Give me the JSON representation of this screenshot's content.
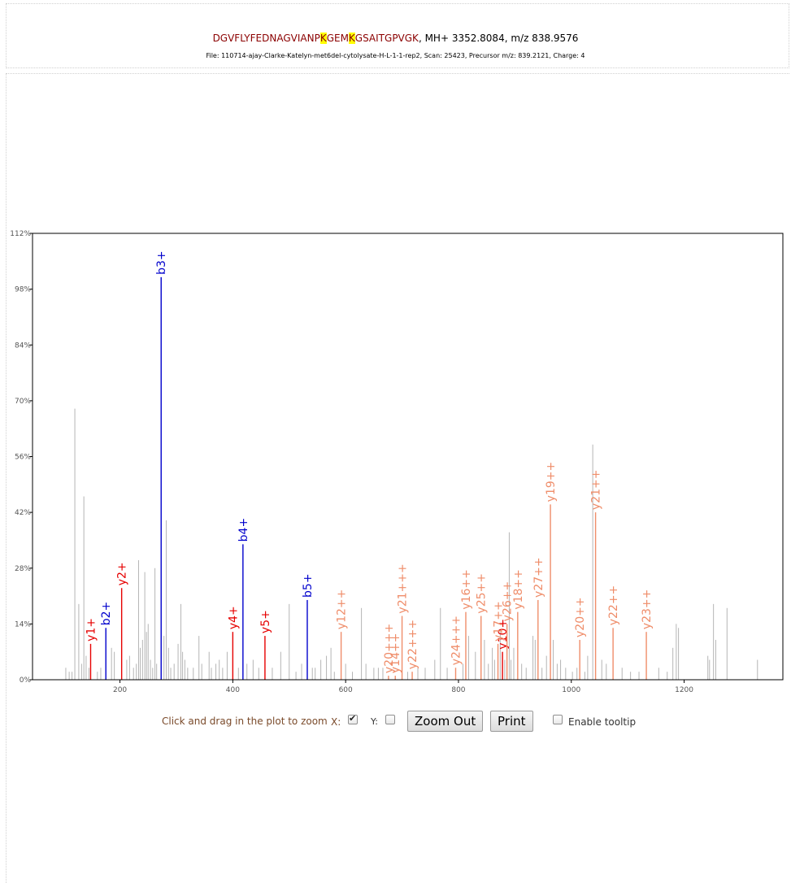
{
  "header": {
    "seq_part1": "DGVFLYFEDNAGVIANP",
    "mod1": "K",
    "seq_part2": "GEM",
    "mod2": "K",
    "seq_part3": "GSAITGPVGK",
    "mass_text": ", MH+ 3352.8084, m/z 838.9576",
    "file_line": "File: 110714-ajay-Clarke-Katelyn-met6del-cytolysate-H-L-1-1-rep2, Scan: 25423, Precursor m/z: 839.2121, Charge: 4"
  },
  "controls": {
    "zoom_label": "Click and drag in the plot to zoom",
    "x_label": "X:",
    "x_checked": true,
    "y_label": "Y:",
    "y_checked": false,
    "zoom_out_label": "Zoom Out",
    "print_label": "Print",
    "tooltip_label": "Enable tooltip",
    "tooltip_checked": false
  },
  "chart_data": {
    "type": "bar",
    "xlim": [
      45,
      1375
    ],
    "ylim": [
      0,
      112
    ],
    "x_ticks": [
      200,
      400,
      600,
      800,
      1000,
      1200
    ],
    "y_ticks": [
      0,
      14,
      28,
      42,
      56,
      70,
      84,
      98,
      112
    ],
    "y_tick_labels": [
      "0%",
      "14%",
      "28%",
      "42%",
      "56%",
      "70%",
      "84%",
      "98%",
      "112%"
    ],
    "colors": {
      "b_ion": "#0000cc",
      "y_ion": "#e60000",
      "y_multi": "#ef8d6a",
      "unmatched": "#b5b5b5",
      "axis": "#000000"
    },
    "labeled_peaks": [
      {
        "label": "b2+",
        "mz": 175,
        "intensity": 13,
        "kind": "b_ion"
      },
      {
        "label": "b3+",
        "mz": 273,
        "intensity": 101,
        "kind": "b_ion"
      },
      {
        "label": "b4+",
        "mz": 418,
        "intensity": 34,
        "kind": "b_ion"
      },
      {
        "label": "b5+",
        "mz": 532,
        "intensity": 20,
        "kind": "b_ion"
      },
      {
        "label": "y1+",
        "mz": 148,
        "intensity": 9,
        "kind": "y_ion"
      },
      {
        "label": "y2+",
        "mz": 203,
        "intensity": 23,
        "kind": "y_ion"
      },
      {
        "label": "y4+",
        "mz": 400,
        "intensity": 12,
        "kind": "y_ion"
      },
      {
        "label": "y5+",
        "mz": 457,
        "intensity": 11,
        "kind": "y_ion"
      },
      {
        "label": "y10+",
        "mz": 878,
        "intensity": 7,
        "kind": "y_ion"
      },
      {
        "label": "y12++",
        "mz": 592,
        "intensity": 12,
        "kind": "y_multi"
      },
      {
        "label": "y20+++",
        "mz": 676,
        "intensity": 1,
        "kind": "y_multi"
      },
      {
        "label": "y14++",
        "mz": 688,
        "intensity": 1,
        "kind": "y_multi"
      },
      {
        "label": "y21+++",
        "mz": 700,
        "intensity": 16,
        "kind": "y_multi"
      },
      {
        "label": "y22+++",
        "mz": 718,
        "intensity": 2,
        "kind": "y_multi"
      },
      {
        "label": "y24+++",
        "mz": 795,
        "intensity": 3,
        "kind": "y_multi"
      },
      {
        "label": "y16++",
        "mz": 813,
        "intensity": 17,
        "kind": "y_multi"
      },
      {
        "label": "y25++",
        "mz": 840,
        "intensity": 16,
        "kind": "y_multi"
      },
      {
        "label": "y17++",
        "mz": 870,
        "intensity": 9,
        "kind": "y_multi"
      },
      {
        "label": "y26++",
        "mz": 886,
        "intensity": 14,
        "kind": "y_multi"
      },
      {
        "label": "y18++",
        "mz": 905,
        "intensity": 17,
        "kind": "y_multi"
      },
      {
        "label": "y27++",
        "mz": 941,
        "intensity": 20,
        "kind": "y_multi"
      },
      {
        "label": "y19++",
        "mz": 963,
        "intensity": 44,
        "kind": "y_multi"
      },
      {
        "label": "y20++",
        "mz": 1015,
        "intensity": 10,
        "kind": "y_multi"
      },
      {
        "label": "y21++",
        "mz": 1043,
        "intensity": 42,
        "kind": "y_multi"
      },
      {
        "label": "y22++",
        "mz": 1074,
        "intensity": 13,
        "kind": "y_multi"
      },
      {
        "label": "y23++",
        "mz": 1133,
        "intensity": 12,
        "kind": "y_multi"
      }
    ],
    "unlabeled_peaks": [
      [
        104,
        3
      ],
      [
        110,
        2
      ],
      [
        115,
        2
      ],
      [
        120,
        68
      ],
      [
        127,
        19
      ],
      [
        132,
        4
      ],
      [
        136,
        46
      ],
      [
        140,
        6
      ],
      [
        145,
        3
      ],
      [
        160,
        2
      ],
      [
        166,
        3
      ],
      [
        185,
        8
      ],
      [
        190,
        7
      ],
      [
        212,
        5
      ],
      [
        217,
        6
      ],
      [
        224,
        3
      ],
      [
        229,
        4
      ],
      [
        233,
        30
      ],
      [
        236,
        8
      ],
      [
        240,
        10
      ],
      [
        244,
        27
      ],
      [
        247,
        12
      ],
      [
        250,
        14
      ],
      [
        254,
        5
      ],
      [
        258,
        3
      ],
      [
        262,
        28
      ],
      [
        265,
        4
      ],
      [
        278,
        11
      ],
      [
        282,
        40
      ],
      [
        286,
        8
      ],
      [
        290,
        3
      ],
      [
        296,
        4
      ],
      [
        303,
        9
      ],
      [
        308,
        19
      ],
      [
        311,
        7
      ],
      [
        315,
        5
      ],
      [
        320,
        3
      ],
      [
        330,
        3
      ],
      [
        340,
        11
      ],
      [
        345,
        4
      ],
      [
        358,
        7
      ],
      [
        362,
        3
      ],
      [
        370,
        4
      ],
      [
        376,
        5
      ],
      [
        382,
        3
      ],
      [
        390,
        7
      ],
      [
        410,
        3
      ],
      [
        425,
        4
      ],
      [
        436,
        5
      ],
      [
        446,
        3
      ],
      [
        470,
        3
      ],
      [
        485,
        7
      ],
      [
        500,
        19
      ],
      [
        512,
        2
      ],
      [
        522,
        4
      ],
      [
        541,
        3
      ],
      [
        546,
        3
      ],
      [
        556,
        5
      ],
      [
        566,
        6
      ],
      [
        574,
        8
      ],
      [
        580,
        2
      ],
      [
        600,
        4
      ],
      [
        612,
        2
      ],
      [
        628,
        18
      ],
      [
        636,
        4
      ],
      [
        650,
        3
      ],
      [
        658,
        3
      ],
      [
        666,
        3
      ],
      [
        710,
        2
      ],
      [
        728,
        3
      ],
      [
        741,
        3
      ],
      [
        758,
        5
      ],
      [
        768,
        18
      ],
      [
        780,
        3
      ],
      [
        808,
        4
      ],
      [
        818,
        11
      ],
      [
        830,
        7
      ],
      [
        846,
        10
      ],
      [
        853,
        4
      ],
      [
        860,
        8
      ],
      [
        864,
        5
      ],
      [
        874,
        12
      ],
      [
        882,
        5
      ],
      [
        890,
        37
      ],
      [
        893,
        5
      ],
      [
        898,
        8
      ],
      [
        912,
        4
      ],
      [
        920,
        3
      ],
      [
        932,
        11
      ],
      [
        936,
        10
      ],
      [
        948,
        3
      ],
      [
        956,
        6
      ],
      [
        968,
        10
      ],
      [
        975,
        4
      ],
      [
        981,
        5
      ],
      [
        990,
        3
      ],
      [
        1002,
        2
      ],
      [
        1010,
        3
      ],
      [
        1024,
        2
      ],
      [
        1029,
        6
      ],
      [
        1038,
        59
      ],
      [
        1054,
        5
      ],
      [
        1062,
        4
      ],
      [
        1090,
        3
      ],
      [
        1105,
        2
      ],
      [
        1120,
        2
      ],
      [
        1155,
        3
      ],
      [
        1170,
        2
      ],
      [
        1180,
        8
      ],
      [
        1186,
        14
      ],
      [
        1190,
        13
      ],
      [
        1242,
        6
      ],
      [
        1245,
        5
      ],
      [
        1252,
        19
      ],
      [
        1256,
        10
      ],
      [
        1276,
        18
      ],
      [
        1330,
        5
      ]
    ]
  }
}
